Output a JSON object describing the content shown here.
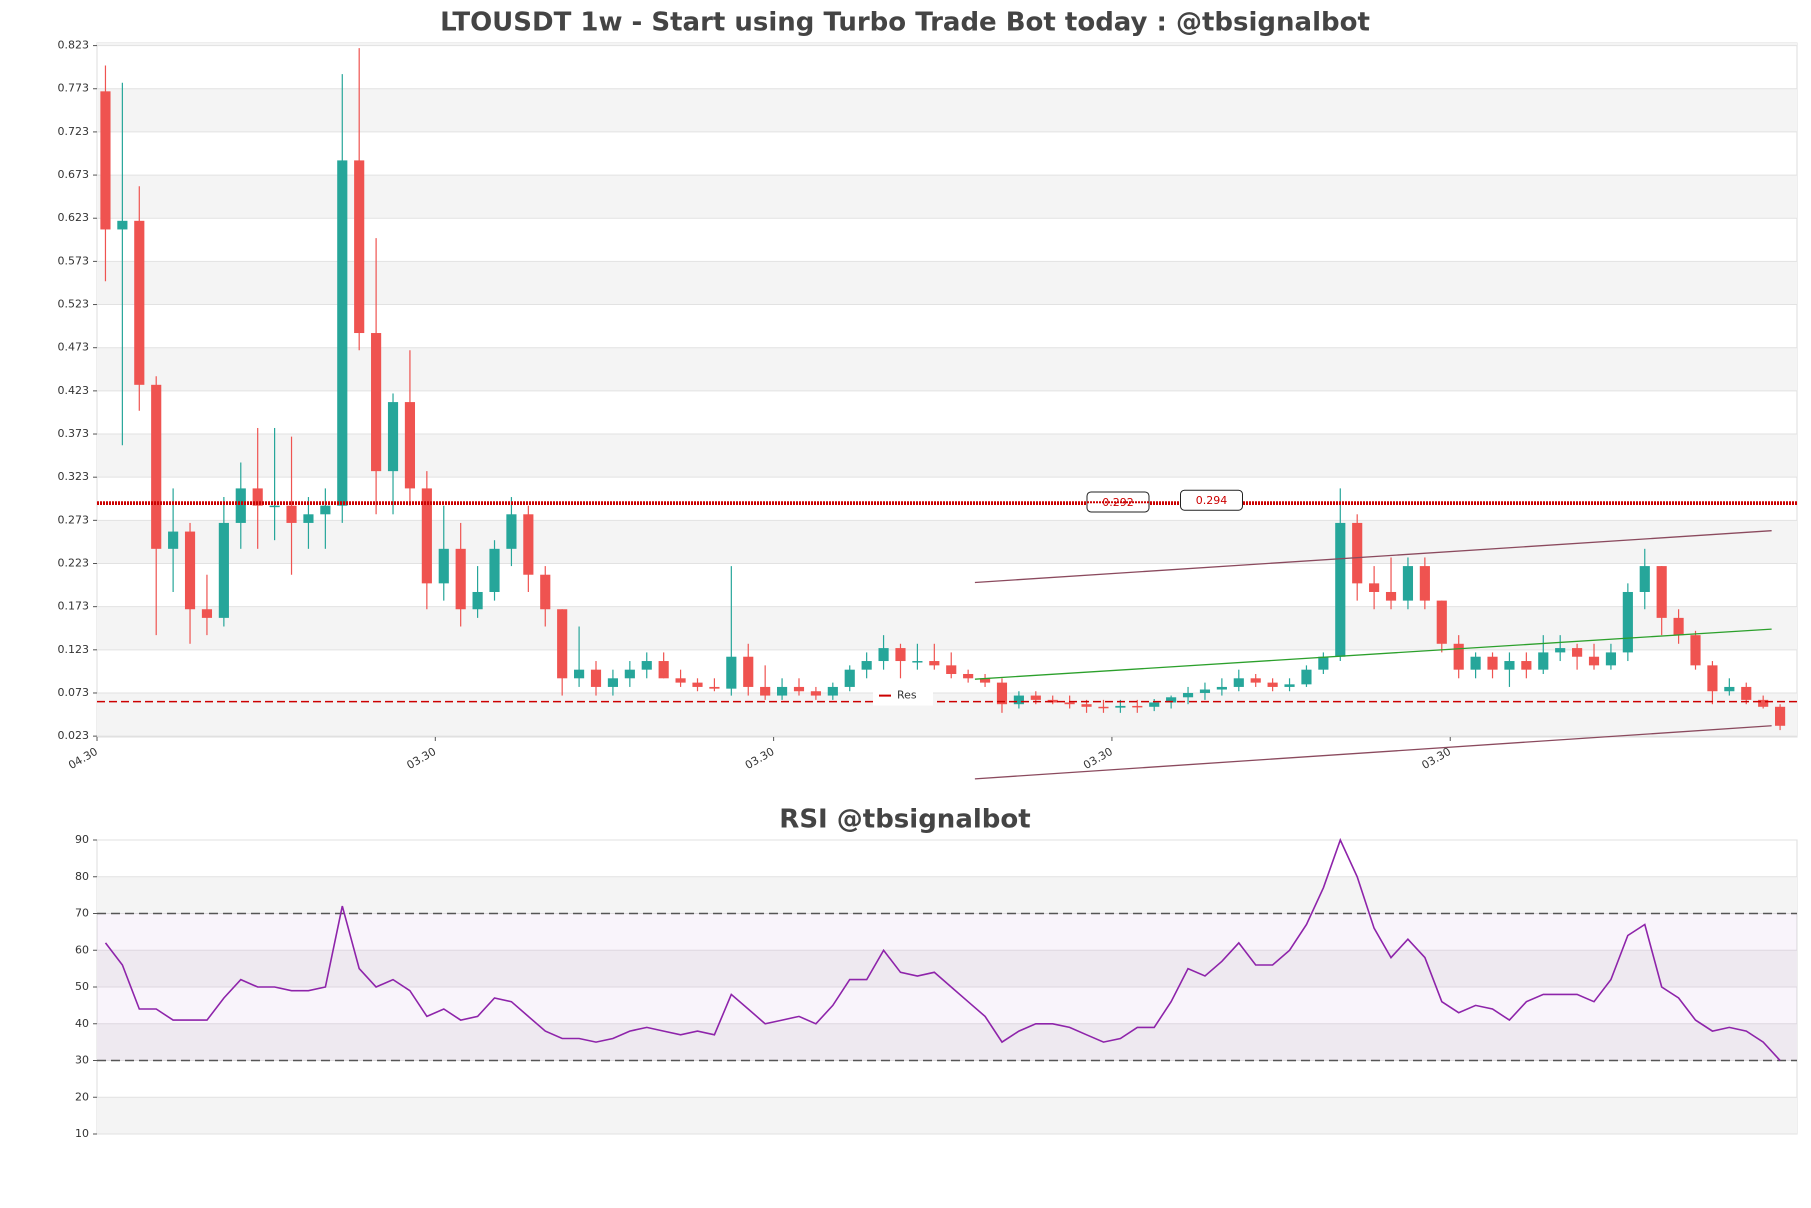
{
  "chart_data": [
    {
      "type": "candlestick",
      "title": "LTOUSDT 1w - Start using Turbo Trade Bot today : @tbsignalbot",
      "ylim": [
        0.022,
        0.826
      ],
      "yticks": [
        0.023,
        0.073,
        0.123,
        0.173,
        0.223,
        0.273,
        0.323,
        0.373,
        0.423,
        0.473,
        0.523,
        0.573,
        0.623,
        0.673,
        0.723,
        0.773,
        0.823
      ],
      "xlim": [
        0,
        100.5
      ],
      "xticks": [
        {
          "value": 0,
          "label": "04.30"
        },
        {
          "value": 20,
          "label": "03.30"
        },
        {
          "value": 40,
          "label": "03.30"
        },
        {
          "value": 60,
          "label": "03.30"
        },
        {
          "value": 80,
          "label": "03.30"
        }
      ],
      "up_color": "#26a69a",
      "down_color": "#ef5350",
      "open": [
        0.77,
        0.61,
        0.62,
        0.43,
        0.24,
        0.26,
        0.17,
        0.16,
        0.27,
        0.31,
        0.29,
        0.29,
        0.27,
        0.28,
        0.29,
        0.69,
        0.49,
        0.33,
        0.41,
        0.31,
        0.2,
        0.24,
        0.17,
        0.19,
        0.24,
        0.28,
        0.21,
        0.17,
        0.09,
        0.1,
        0.08,
        0.09,
        0.1,
        0.11,
        0.09,
        0.085,
        0.08,
        0.078,
        0.115,
        0.08,
        0.07,
        0.08,
        0.075,
        0.07,
        0.08,
        0.1,
        0.11,
        0.125,
        0.11,
        0.11,
        0.105,
        0.095,
        0.09,
        0.085,
        0.06,
        0.07,
        0.065,
        0.062,
        0.06,
        0.057,
        0.056,
        0.058,
        0.057,
        0.062,
        0.068,
        0.073,
        0.077,
        0.08,
        0.09,
        0.085,
        0.08,
        0.083,
        0.1,
        0.115,
        0.27,
        0.2,
        0.19,
        0.18,
        0.22,
        0.18,
        0.13,
        0.1,
        0.115,
        0.1,
        0.11,
        0.1,
        0.12,
        0.125,
        0.115,
        0.105,
        0.12,
        0.19,
        0.22,
        0.16,
        0.14,
        0.105,
        0.075,
        0.08,
        0.065,
        0.057
      ],
      "high": [
        0.8,
        0.78,
        0.66,
        0.44,
        0.31,
        0.27,
        0.21,
        0.3,
        0.34,
        0.38,
        0.38,
        0.37,
        0.3,
        0.31,
        0.79,
        0.82,
        0.6,
        0.42,
        0.47,
        0.33,
        0.29,
        0.27,
        0.22,
        0.25,
        0.3,
        0.29,
        0.22,
        0.17,
        0.15,
        0.11,
        0.1,
        0.11,
        0.12,
        0.12,
        0.1,
        0.09,
        0.09,
        0.22,
        0.13,
        0.105,
        0.09,
        0.09,
        0.08,
        0.085,
        0.105,
        0.12,
        0.14,
        0.13,
        0.13,
        0.13,
        0.12,
        0.1,
        0.095,
        0.09,
        0.075,
        0.075,
        0.07,
        0.07,
        0.065,
        0.065,
        0.065,
        0.065,
        0.066,
        0.07,
        0.08,
        0.085,
        0.09,
        0.1,
        0.095,
        0.09,
        0.09,
        0.105,
        0.12,
        0.31,
        0.28,
        0.22,
        0.23,
        0.23,
        0.23,
        0.18,
        0.14,
        0.12,
        0.12,
        0.12,
        0.12,
        0.14,
        0.14,
        0.13,
        0.13,
        0.13,
        0.2,
        0.24,
        0.22,
        0.17,
        0.145,
        0.11,
        0.09,
        0.085,
        0.07,
        0.06
      ],
      "low": [
        0.55,
        0.36,
        0.4,
        0.14,
        0.19,
        0.13,
        0.14,
        0.15,
        0.24,
        0.24,
        0.25,
        0.21,
        0.24,
        0.24,
        0.27,
        0.47,
        0.28,
        0.28,
        0.29,
        0.17,
        0.18,
        0.15,
        0.16,
        0.18,
        0.22,
        0.19,
        0.15,
        0.07,
        0.08,
        0.07,
        0.07,
        0.08,
        0.09,
        0.09,
        0.08,
        0.075,
        0.075,
        0.07,
        0.07,
        0.065,
        0.065,
        0.07,
        0.065,
        0.065,
        0.075,
        0.09,
        0.1,
        0.09,
        0.1,
        0.1,
        0.09,
        0.085,
        0.08,
        0.05,
        0.055,
        0.06,
        0.06,
        0.055,
        0.05,
        0.05,
        0.05,
        0.05,
        0.052,
        0.055,
        0.06,
        0.065,
        0.07,
        0.075,
        0.08,
        0.075,
        0.075,
        0.08,
        0.095,
        0.11,
        0.18,
        0.17,
        0.17,
        0.17,
        0.17,
        0.12,
        0.09,
        0.09,
        0.09,
        0.08,
        0.09,
        0.095,
        0.11,
        0.1,
        0.1,
        0.1,
        0.11,
        0.17,
        0.14,
        0.13,
        0.1,
        0.06,
        0.07,
        0.06,
        0.055,
        0.03
      ],
      "close": [
        0.61,
        0.62,
        0.43,
        0.24,
        0.26,
        0.17,
        0.16,
        0.27,
        0.31,
        0.29,
        0.29,
        0.27,
        0.28,
        0.29,
        0.69,
        0.49,
        0.33,
        0.41,
        0.31,
        0.2,
        0.24,
        0.17,
        0.19,
        0.24,
        0.28,
        0.21,
        0.17,
        0.09,
        0.1,
        0.08,
        0.09,
        0.1,
        0.11,
        0.09,
        0.085,
        0.08,
        0.078,
        0.115,
        0.08,
        0.07,
        0.08,
        0.075,
        0.07,
        0.08,
        0.1,
        0.11,
        0.125,
        0.11,
        0.11,
        0.105,
        0.095,
        0.09,
        0.085,
        0.06,
        0.07,
        0.065,
        0.062,
        0.06,
        0.057,
        0.056,
        0.058,
        0.057,
        0.062,
        0.068,
        0.073,
        0.077,
        0.08,
        0.09,
        0.085,
        0.08,
        0.083,
        0.1,
        0.115,
        0.27,
        0.2,
        0.19,
        0.18,
        0.22,
        0.18,
        0.13,
        0.1,
        0.115,
        0.1,
        0.11,
        0.1,
        0.12,
        0.125,
        0.115,
        0.105,
        0.12,
        0.19,
        0.22,
        0.16,
        0.14,
        0.105,
        0.075,
        0.08,
        0.065,
        0.057,
        0.035
      ],
      "levels": [
        {
          "value": 0.292,
          "color": "#cc0000"
        },
        {
          "value": 0.294,
          "color": "#cc0000"
        }
      ],
      "resistance": {
        "name": "Res",
        "value": 0.063,
        "color": "#cc0000"
      },
      "trendlines": [
        {
          "x": [
            51.9,
            99
          ],
          "y": [
            0.201,
            0.261
          ],
          "color": "#8b4a5e"
        },
        {
          "x": [
            51.9,
            99
          ],
          "y": [
            -0.0265,
            0.035
          ],
          "color": "#8b4a5e"
        },
        {
          "x": [
            51.9,
            99
          ],
          "y": [
            0.089,
            0.147
          ],
          "color": "#2ca02c"
        }
      ]
    },
    {
      "type": "line",
      "title": "RSI @tbsignalbot",
      "ylim": [
        10,
        90
      ],
      "yticks": [
        10,
        20,
        30,
        40,
        50,
        60,
        70,
        80,
        90
      ],
      "xlim": [
        0,
        100.5
      ],
      "hlines": [
        30,
        70
      ],
      "series": [
        {
          "color": "#8e24aa",
          "values": [
            62,
            56,
            44,
            44,
            41,
            41,
            41,
            47,
            52,
            50,
            50,
            49,
            49,
            50,
            72,
            55,
            50,
            52,
            49,
            42,
            44,
            41,
            42,
            47,
            46,
            42,
            38,
            36,
            36,
            35,
            36,
            38,
            39,
            38,
            37,
            38,
            37,
            48,
            44,
            40,
            41,
            42,
            40,
            45,
            52,
            52,
            60,
            54,
            53,
            54,
            50,
            46,
            42,
            35,
            38,
            40,
            40,
            39,
            37,
            35,
            36,
            39,
            39,
            46,
            55,
            53,
            57,
            62,
            56,
            56,
            60,
            67,
            77,
            90,
            80,
            66,
            58,
            63,
            58,
            46,
            43,
            45,
            44,
            41,
            46,
            48,
            48,
            48,
            46,
            52,
            64,
            67,
            50,
            47,
            41,
            38,
            39,
            38,
            35,
            30
          ]
        }
      ]
    }
  ]
}
